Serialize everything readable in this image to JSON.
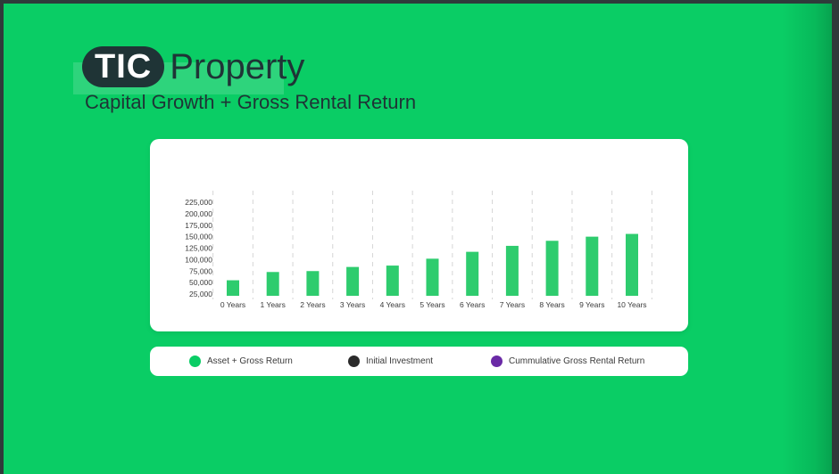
{
  "header": {
    "logo_mark": "TIC",
    "logo_word": "Property",
    "subtitle": "Capital Growth + Gross Rental Return"
  },
  "colors": {
    "background": "#0acd65",
    "bar": "#2ecc6e",
    "dark": "#1f3436"
  },
  "chart_data": {
    "type": "bar",
    "categories": [
      "0 Years",
      "1 Years",
      "2 Years",
      "3 Years",
      "4 Years",
      "5 Years",
      "6 Years",
      "7 Years",
      "8 Years",
      "9 Years",
      "10 Years"
    ],
    "series": [
      {
        "name": "Asset + Gross Return",
        "color": "#2ecc6e",
        "values": [
          55000,
          73000,
          75000,
          84000,
          87000,
          102000,
          117000,
          130000,
          141000,
          150000,
          156000
        ]
      }
    ],
    "yticks": [
      "225,000",
      "200,000",
      "175,000",
      "150,000",
      "125,000",
      "100,000",
      "75,000",
      "50,000",
      "25,000"
    ],
    "ylim": [
      25000,
      225000
    ],
    "grid": "vertical-dashed"
  },
  "legend": {
    "items": [
      {
        "label": "Asset + Gross Return",
        "color": "#0acd65"
      },
      {
        "label": "Initial Investment",
        "color": "#2b2b2b"
      },
      {
        "label": "Cummulative Gross Rental Return",
        "color": "#6a2aa6"
      }
    ]
  }
}
